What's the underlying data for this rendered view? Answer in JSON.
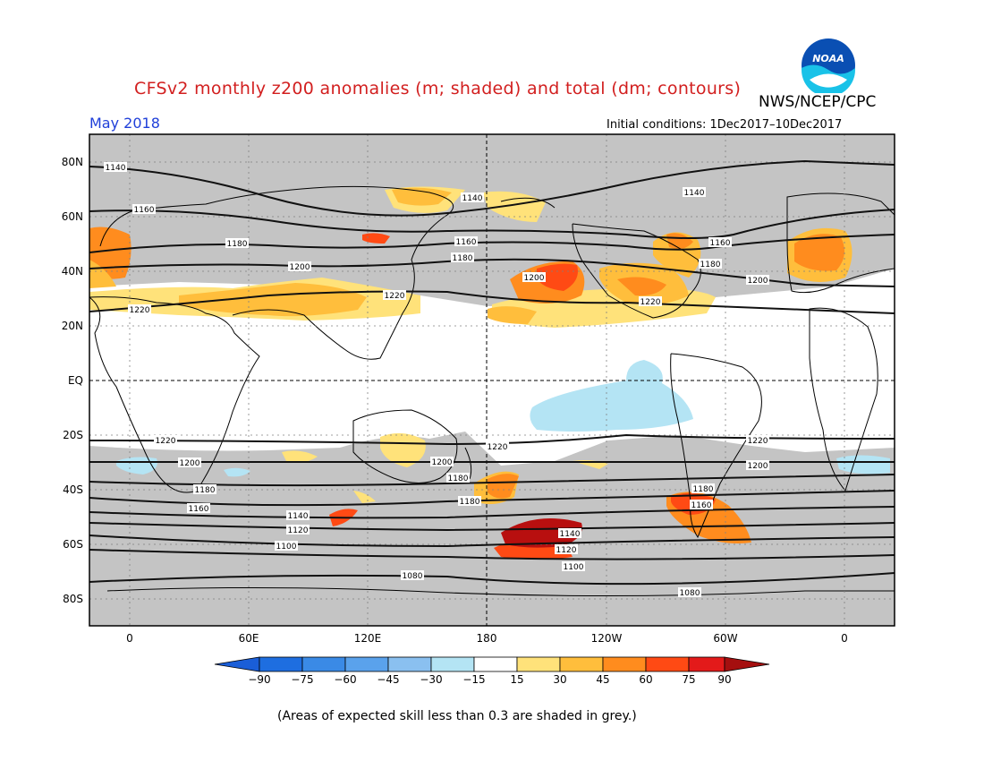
{
  "header": {
    "title": "CFSv2 monthly z200 anomalies (m; shaded) and total (dm; contours)",
    "agency": "NWS/NCEP/CPC",
    "month": "May 2018",
    "initial_conditions": "Initial conditions: 1Dec2017–10Dec2017",
    "logo_text": "NOAA"
  },
  "map": {
    "lat_labels": [
      "80N",
      "60N",
      "40N",
      "20N",
      "EQ",
      "20S",
      "40S",
      "60S",
      "80S"
    ],
    "lon_labels": [
      "0",
      "60E",
      "120E",
      "180",
      "120W",
      "60W",
      "0"
    ],
    "grey_shading_meaning": "expected skill less than 0.3",
    "contour_labels": [
      {
        "text": "1140",
        "id": "c1140n-a"
      },
      {
        "text": "1140",
        "id": "c1140n-b"
      },
      {
        "text": "1140",
        "id": "c1140n-c"
      },
      {
        "text": "1160",
        "id": "c1160n-a"
      },
      {
        "text": "1160",
        "id": "c1160n-b"
      },
      {
        "text": "1160",
        "id": "c1160n-c"
      },
      {
        "text": "1180",
        "id": "c1180n-a"
      },
      {
        "text": "1180",
        "id": "c1180n-b"
      },
      {
        "text": "1180",
        "id": "c1180n-c"
      },
      {
        "text": "1200",
        "id": "c1200n-a"
      },
      {
        "text": "1200",
        "id": "c1200n-b"
      },
      {
        "text": "1200",
        "id": "c1200n-c"
      },
      {
        "text": "1220",
        "id": "c1220n-a"
      },
      {
        "text": "1220",
        "id": "c1220n-b"
      },
      {
        "text": "1220",
        "id": "c1220n-c"
      },
      {
        "text": "1220",
        "id": "c1220s-a"
      },
      {
        "text": "1220",
        "id": "c1220s-b"
      },
      {
        "text": "1220",
        "id": "c1220s-c"
      },
      {
        "text": "1200",
        "id": "c1200s-a"
      },
      {
        "text": "1200",
        "id": "c1200s-b"
      },
      {
        "text": "1200",
        "id": "c1200s-c"
      },
      {
        "text": "1180",
        "id": "c1180s-a"
      },
      {
        "text": "1180",
        "id": "c1180s-b"
      },
      {
        "text": "1180",
        "id": "c1180s-c"
      },
      {
        "text": "1180",
        "id": "c1180s-d"
      },
      {
        "text": "1160",
        "id": "c1160s-a"
      },
      {
        "text": "1160",
        "id": "c1160s-b"
      },
      {
        "text": "1140",
        "id": "c1140s-a"
      },
      {
        "text": "1140",
        "id": "c1140s-b"
      },
      {
        "text": "1120",
        "id": "c1120s-a"
      },
      {
        "text": "1120",
        "id": "c1120s-b"
      },
      {
        "text": "1100",
        "id": "c1100s-a"
      },
      {
        "text": "1100",
        "id": "c1100s-b"
      },
      {
        "text": "1080",
        "id": "c1080s-a"
      },
      {
        "text": "1080",
        "id": "c1080s-b"
      }
    ]
  },
  "colorbar": {
    "ticks": [
      "−90",
      "−75",
      "−60",
      "−45",
      "−30",
      "−15",
      "15",
      "30",
      "45",
      "60",
      "75",
      "90"
    ],
    "colors": [
      "#1e6ee0",
      "#3a8ae6",
      "#5aa2ec",
      "#8ac0f0",
      "#b4e4f4",
      "#ffffff",
      "#ffe27a",
      "#ffbe3c",
      "#ff8c1e",
      "#ff4a14",
      "#e31a1a",
      "#b80f0f"
    ],
    "low_end_color": "#1a5ed8",
    "high_end_color": "#a50f0f"
  },
  "footer": {
    "note": "(Areas of expected skill less than 0.3 are shaded in grey.)"
  }
}
